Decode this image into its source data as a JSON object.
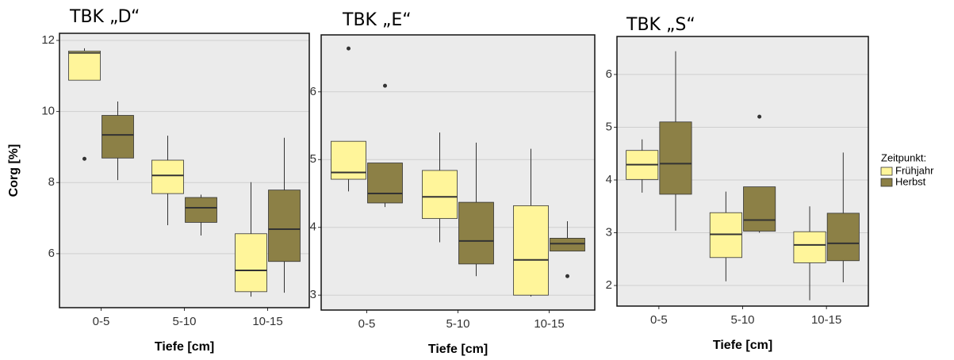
{
  "chart_data": [
    {
      "type": "box",
      "title": "TBK „D“",
      "x_label": "Tiefe [cm]",
      "y_label": "Corg [%]",
      "categories": [
        "0-5",
        "5-10",
        "10-15"
      ],
      "ylim": [
        4.48,
        12.2
      ],
      "yticks": [
        6,
        8,
        10,
        12
      ],
      "grid": true,
      "series": [
        {
          "color": "#fff59a",
          "values": [
            {
              "min": 10.88,
              "q1": 10.88,
              "median": 11.65,
              "q3": 11.7,
              "max": 11.78,
              "outliers": [
                8.67
              ]
            },
            {
              "min": 6.8,
              "q1": 7.69,
              "median": 8.2,
              "q3": 8.63,
              "max": 9.32,
              "outliers": []
            },
            {
              "min": 4.79,
              "q1": 4.93,
              "median": 5.53,
              "q3": 6.56,
              "max": 8.01,
              "outliers": []
            }
          ]
        },
        {
          "color": "#8c8046",
          "values": [
            {
              "min": 8.07,
              "q1": 8.69,
              "median": 9.34,
              "q3": 9.89,
              "max": 10.28,
              "outliers": []
            },
            {
              "min": 6.51,
              "q1": 6.88,
              "median": 7.29,
              "q3": 7.58,
              "max": 7.66,
              "outliers": []
            },
            {
              "min": 4.9,
              "q1": 5.78,
              "median": 6.69,
              "q3": 7.79,
              "max": 9.26,
              "outliers": []
            }
          ]
        }
      ]
    },
    {
      "type": "box",
      "title": "TBK „E“",
      "x_label": "Tiefe [cm]",
      "categories": [
        "0-5",
        "5-10",
        "10-15"
      ],
      "ylim": [
        2.78,
        6.84
      ],
      "yticks": [
        3,
        4,
        5,
        6
      ],
      "grid": true,
      "series": [
        {
          "color": "#fff59a",
          "values": [
            {
              "min": 4.53,
              "q1": 4.71,
              "median": 4.81,
              "q3": 5.27,
              "max": 5.27,
              "outliers": [
                6.64
              ]
            },
            {
              "min": 3.78,
              "q1": 4.13,
              "median": 4.45,
              "q3": 4.84,
              "max": 5.4,
              "outliers": []
            },
            {
              "min": 2.98,
              "q1": 3.0,
              "median": 3.52,
              "q3": 4.32,
              "max": 5.16,
              "outliers": []
            }
          ]
        },
        {
          "color": "#8c8046",
          "values": [
            {
              "min": 4.3,
              "q1": 4.36,
              "median": 4.5,
              "q3": 4.95,
              "max": 4.95,
              "outliers": [
                6.09
              ]
            },
            {
              "min": 3.28,
              "q1": 3.46,
              "median": 3.8,
              "q3": 4.37,
              "max": 5.25,
              "outliers": []
            },
            {
              "min": 3.65,
              "q1": 3.65,
              "median": 3.76,
              "q3": 3.84,
              "max": 4.09,
              "outliers": [
                3.28
              ]
            }
          ]
        }
      ]
    },
    {
      "type": "box",
      "title": "TBK „S“",
      "x_label": "Tiefe [cm]",
      "categories": [
        "0-5",
        "5-10",
        "10-15"
      ],
      "ylim": [
        1.61,
        6.72
      ],
      "yticks": [
        2,
        3,
        4,
        5,
        6
      ],
      "grid": true,
      "legend": "right",
      "legend_title": "Zeitpunkt:",
      "series": [
        {
          "name": "Frühjahr",
          "color": "#fff59a",
          "values": [
            {
              "min": 3.76,
              "q1": 4.01,
              "median": 4.29,
              "q3": 4.56,
              "max": 4.77,
              "outliers": []
            },
            {
              "min": 2.08,
              "q1": 2.53,
              "median": 2.97,
              "q3": 3.38,
              "max": 3.78,
              "outliers": []
            },
            {
              "min": 1.72,
              "q1": 2.43,
              "median": 2.77,
              "q3": 3.02,
              "max": 3.5,
              "outliers": []
            }
          ]
        },
        {
          "name": "Herbst",
          "color": "#8c8046",
          "values": [
            {
              "min": 3.04,
              "q1": 3.73,
              "median": 4.31,
              "q3": 5.1,
              "max": 6.44,
              "outliers": []
            },
            {
              "min": 3.0,
              "q1": 3.03,
              "median": 3.24,
              "q3": 3.87,
              "max": 3.87,
              "outliers": [
                5.2
              ]
            },
            {
              "min": 2.06,
              "q1": 2.47,
              "median": 2.8,
              "q3": 3.37,
              "max": 4.52,
              "outliers": []
            }
          ]
        }
      ]
    }
  ]
}
